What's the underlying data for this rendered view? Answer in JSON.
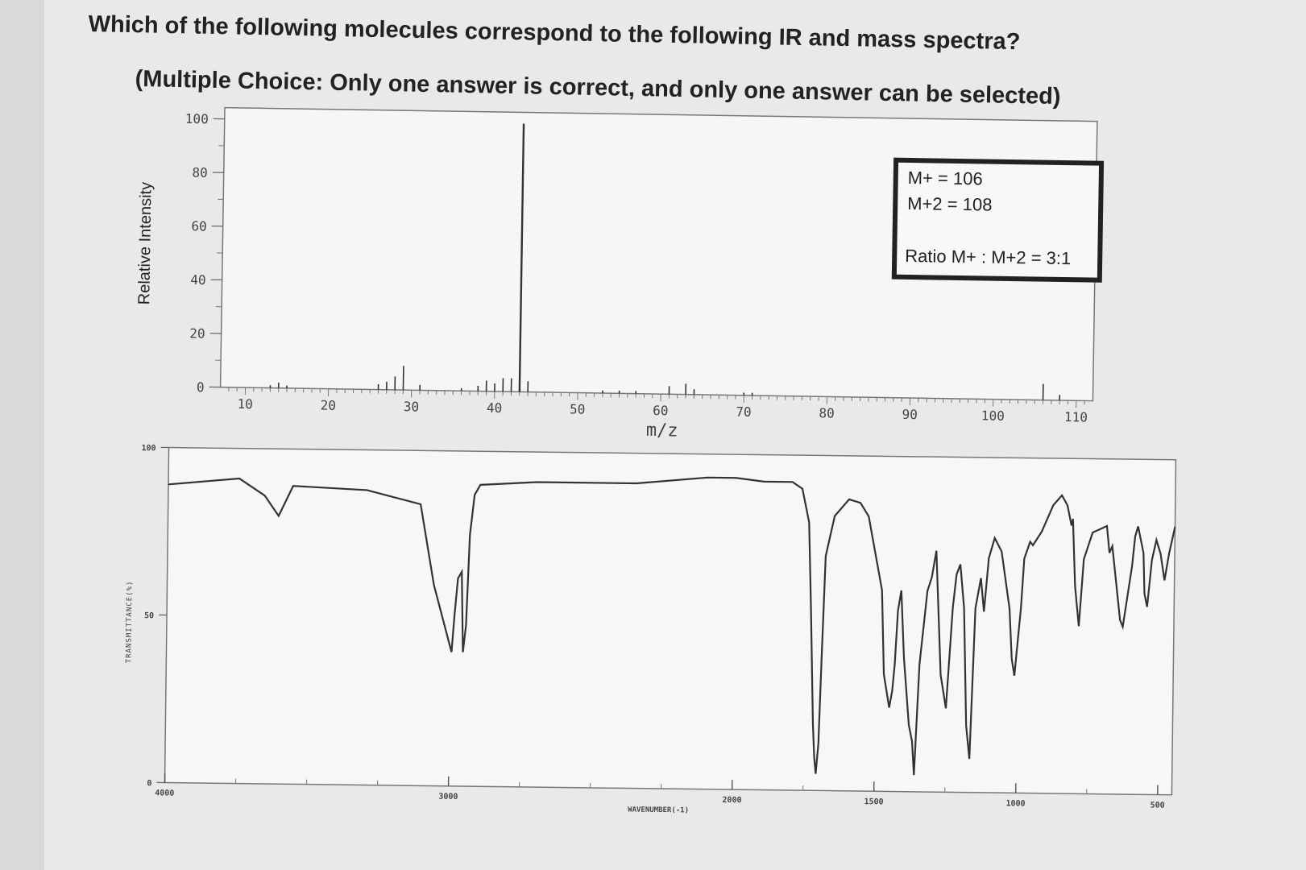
{
  "question": {
    "title": "Which of the following molecules correspond to the following IR and mass spectra?",
    "subtitle": "(Multiple Choice: Only one answer is correct, and only one answer can be selected)"
  },
  "chart_data": [
    {
      "type": "bar",
      "name": "mass-spectrum",
      "xlabel": "m/z",
      "ylabel": "Relative Intensity",
      "xlim": [
        7,
        112
      ],
      "ylim": [
        0,
        100
      ],
      "xticks": [
        10,
        20,
        30,
        40,
        50,
        60,
        70,
        80,
        90,
        100,
        110
      ],
      "yticks": [
        0,
        20,
        40,
        60,
        80,
        100
      ],
      "peaks": [
        {
          "mz": 13,
          "intensity": 1
        },
        {
          "mz": 14,
          "intensity": 2
        },
        {
          "mz": 15,
          "intensity": 1
        },
        {
          "mz": 26,
          "intensity": 2
        },
        {
          "mz": 27,
          "intensity": 3
        },
        {
          "mz": 28,
          "intensity": 5
        },
        {
          "mz": 29,
          "intensity": 9
        },
        {
          "mz": 31,
          "intensity": 2
        },
        {
          "mz": 36,
          "intensity": 1
        },
        {
          "mz": 38,
          "intensity": 2
        },
        {
          "mz": 39,
          "intensity": 4
        },
        {
          "mz": 40,
          "intensity": 3
        },
        {
          "mz": 41,
          "intensity": 5
        },
        {
          "mz": 42,
          "intensity": 5
        },
        {
          "mz": 43,
          "intensity": 100
        },
        {
          "mz": 44,
          "intensity": 4
        },
        {
          "mz": 53,
          "intensity": 1
        },
        {
          "mz": 55,
          "intensity": 1
        },
        {
          "mz": 57,
          "intensity": 1
        },
        {
          "mz": 61,
          "intensity": 3
        },
        {
          "mz": 63,
          "intensity": 4
        },
        {
          "mz": 64,
          "intensity": 2
        },
        {
          "mz": 70,
          "intensity": 1
        },
        {
          "mz": 71,
          "intensity": 1
        },
        {
          "mz": 106,
          "intensity": 6
        },
        {
          "mz": 108,
          "intensity": 2
        }
      ],
      "annotation": {
        "m_plus": "M+ = 106",
        "m_plus_2": "M+2 = 108",
        "ratio": "Ratio M+ : M+2 = 3:1"
      }
    },
    {
      "type": "line",
      "name": "ir-spectrum",
      "xlabel": "WAVENUMBER(-1)",
      "ylabel": "TRANSMITTANCE(%)",
      "xlim": [
        4000,
        450
      ],
      "ylim": [
        0,
        100
      ],
      "xticks": [
        4000,
        3000,
        2000,
        1500,
        1000,
        500
      ],
      "yticks": [
        0,
        50,
        100
      ],
      "x": [
        4000,
        3750,
        3660,
        3610,
        3560,
        3300,
        3110,
        3060,
        2995,
        2985,
        2975,
        2962,
        2955,
        2945,
        2935,
        2920,
        2900,
        2700,
        2350,
        2100,
        2000,
        1900,
        1800,
        1765,
        1740,
        1730,
        1718,
        1712,
        1706,
        1698,
        1690,
        1680,
        1650,
        1600,
        1560,
        1530,
        1480,
        1470,
        1450,
        1440,
        1432,
        1423,
        1412,
        1400,
        1380,
        1368,
        1360,
        1345,
        1320,
        1305,
        1290,
        1270,
        1250,
        1230,
        1218,
        1205,
        1190,
        1178,
        1165,
        1150,
        1132,
        1120,
        1105,
        1085,
        1060,
        1030,
        1020,
        1010,
        990,
        980,
        960,
        950,
        920,
        880,
        850,
        830,
        815,
        810,
        800,
        785,
        770,
        740,
        690,
        680,
        670,
        640,
        630,
        600,
        590,
        580,
        560,
        555,
        545,
        530,
        515,
        500,
        485,
        470,
        450
      ],
      "y": [
        89,
        91,
        86,
        80,
        89,
        88,
        84,
        60,
        40,
        52,
        62,
        64,
        40,
        48,
        75,
        87,
        90,
        91,
        91,
        93,
        93,
        92,
        92,
        90,
        80,
        55,
        20,
        10,
        5,
        14,
        40,
        70,
        82,
        87,
        86,
        82,
        60,
        35,
        25,
        30,
        38,
        54,
        60,
        40,
        20,
        15,
        5,
        38,
        60,
        64,
        72,
        35,
        25,
        55,
        65,
        68,
        55,
        20,
        10,
        55,
        64,
        54,
        70,
        76,
        72,
        55,
        40,
        35,
        55,
        70,
        75,
        74,
        78,
        86,
        89,
        86,
        80,
        82,
        62,
        50,
        70,
        78,
        80,
        72,
        74,
        52,
        50,
        68,
        77,
        80,
        72,
        60,
        56,
        70,
        76,
        72,
        64,
        72,
        80
      ]
    }
  ]
}
